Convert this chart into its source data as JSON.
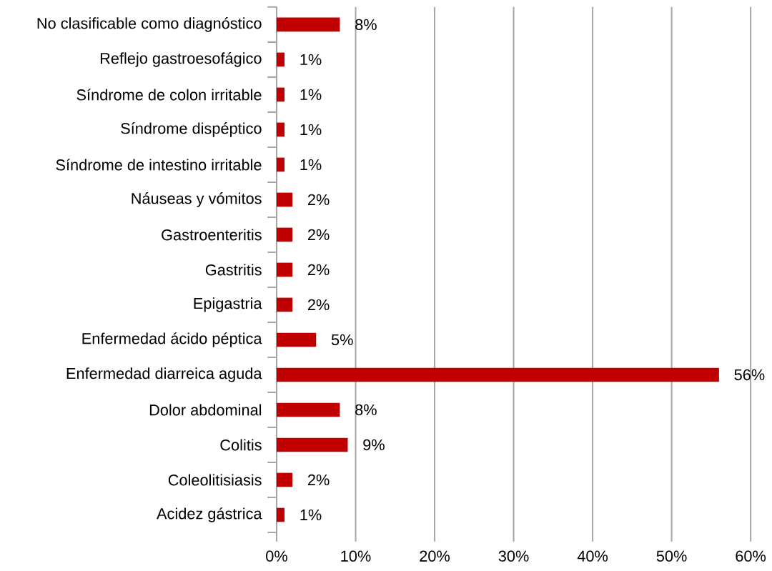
{
  "chart_data": {
    "type": "bar",
    "orientation": "horizontal",
    "categories": [
      "No clasificable como diagnóstico",
      "Reflejo gastroesofágico",
      "Síndrome de colon irritable",
      "Síndrome dispéptico",
      "Síndrome de intestino irritable",
      "Náuseas y vómitos",
      "Gastroenteritis",
      "Gastritis",
      "Epigastria",
      "Enfermedad ácido péptica",
      "Enfermedad diarreica aguda",
      "Dolor abdominal",
      "Colitis",
      "Coleolitisiasis",
      "Acidez gástrica"
    ],
    "values": [
      8,
      1,
      1,
      1,
      1,
      2,
      2,
      2,
      2,
      5,
      56,
      8,
      9,
      2,
      1
    ],
    "value_labels": [
      "8%",
      "1%",
      "1%",
      "1%",
      "1%",
      "2%",
      "2%",
      "2%",
      "2%",
      "5%",
      "56%",
      "8%",
      "9%",
      "2%",
      "1%"
    ],
    "color": "#c00000",
    "xlim": [
      0,
      60
    ],
    "xticks": [
      {
        "value": 0,
        "label": "0%"
      },
      {
        "value": 10,
        "label": "10%"
      },
      {
        "value": 20,
        "label": "20%"
      },
      {
        "value": 30,
        "label": "30%"
      },
      {
        "value": 40,
        "label": "40%"
      },
      {
        "value": 50,
        "label": "50%"
      },
      {
        "value": 60,
        "label": "60%"
      }
    ],
    "grid": "x"
  }
}
